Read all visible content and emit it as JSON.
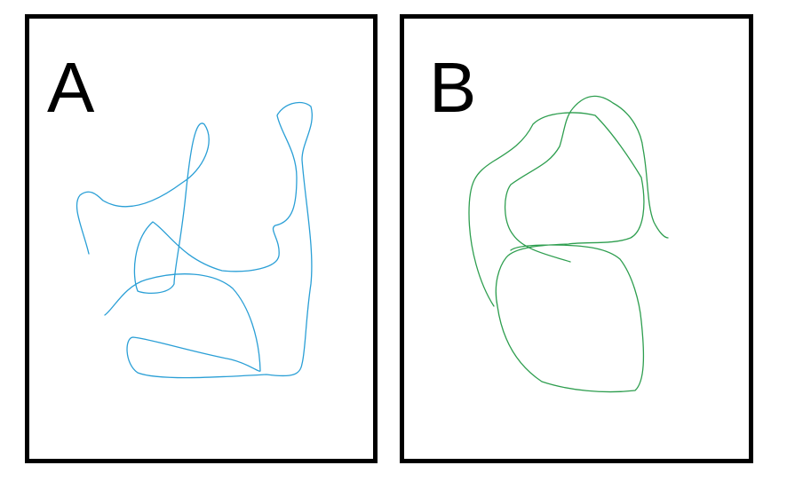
{
  "panels": [
    {
      "label": "A",
      "stroke_color": "#2a9fd6"
    },
    {
      "label": "B",
      "stroke_color": "#2e9e4f"
    }
  ]
}
